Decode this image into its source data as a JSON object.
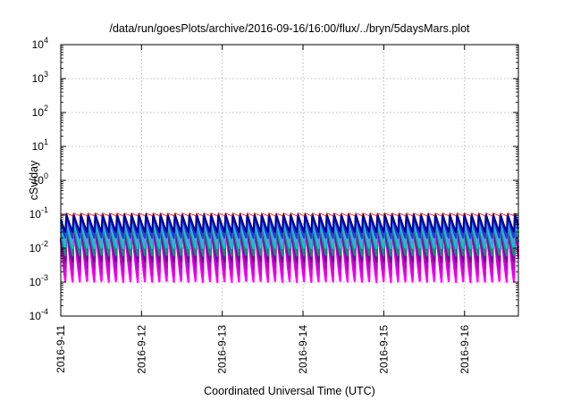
{
  "chart_data": {
    "type": "line",
    "title": "/data/run/goesPlots/archive/2016-09-16/16:00/flux/../bryn/5daysMars.plot",
    "xlabel": "Coordinated Universal Time (UTC)",
    "ylabel": "cSv/day",
    "yscale": "log",
    "ylim": [
      0.0001,
      10000
    ],
    "xlim": [
      "2016-09-11 00:00",
      "2016-09-16 16:00"
    ],
    "x_ticks": [
      "2016-9-11",
      "2016-9-12",
      "2016-9-13",
      "2016-9-14",
      "2016-9-15",
      "2016-9-16"
    ],
    "y_ticks": [
      {
        "base": "10",
        "exp": "-4"
      },
      {
        "base": "10",
        "exp": "-3"
      },
      {
        "base": "10",
        "exp": "-2"
      },
      {
        "base": "10",
        "exp": "-1"
      },
      {
        "base": "10",
        "exp": "0"
      },
      {
        "base": "10",
        "exp": "1"
      },
      {
        "base": "10",
        "exp": "2"
      },
      {
        "base": "10",
        "exp": "3"
      },
      {
        "base": "10",
        "exp": "4"
      }
    ],
    "grid": true,
    "cycle_hours": 2.15,
    "series": [
      {
        "color": "#ff00ff",
        "peak": 0.055,
        "trough": 0.001
      },
      {
        "color": "#e000e0",
        "peak": 0.05,
        "trough": 0.0015
      },
      {
        "color": "#b010c0",
        "peak": 0.045,
        "trough": 0.0025
      },
      {
        "color": "#8000a0",
        "peak": 0.04,
        "trough": 0.004
      },
      {
        "color": "#1a8a7a",
        "peak": 0.06,
        "trough": 0.006
      },
      {
        "color": "#00cccc",
        "peak": 0.07,
        "trough": 0.01
      },
      {
        "color": "#4fa0e0",
        "peak": 0.08,
        "trough": 0.014
      },
      {
        "color": "#2040d0",
        "peak": 0.095,
        "trough": 0.02
      },
      {
        "color": "#0000a0",
        "peak": 0.1,
        "trough": 0.03
      },
      {
        "color": "#ff2020",
        "peak": 0.11,
        "trough": 0.09
      }
    ]
  }
}
